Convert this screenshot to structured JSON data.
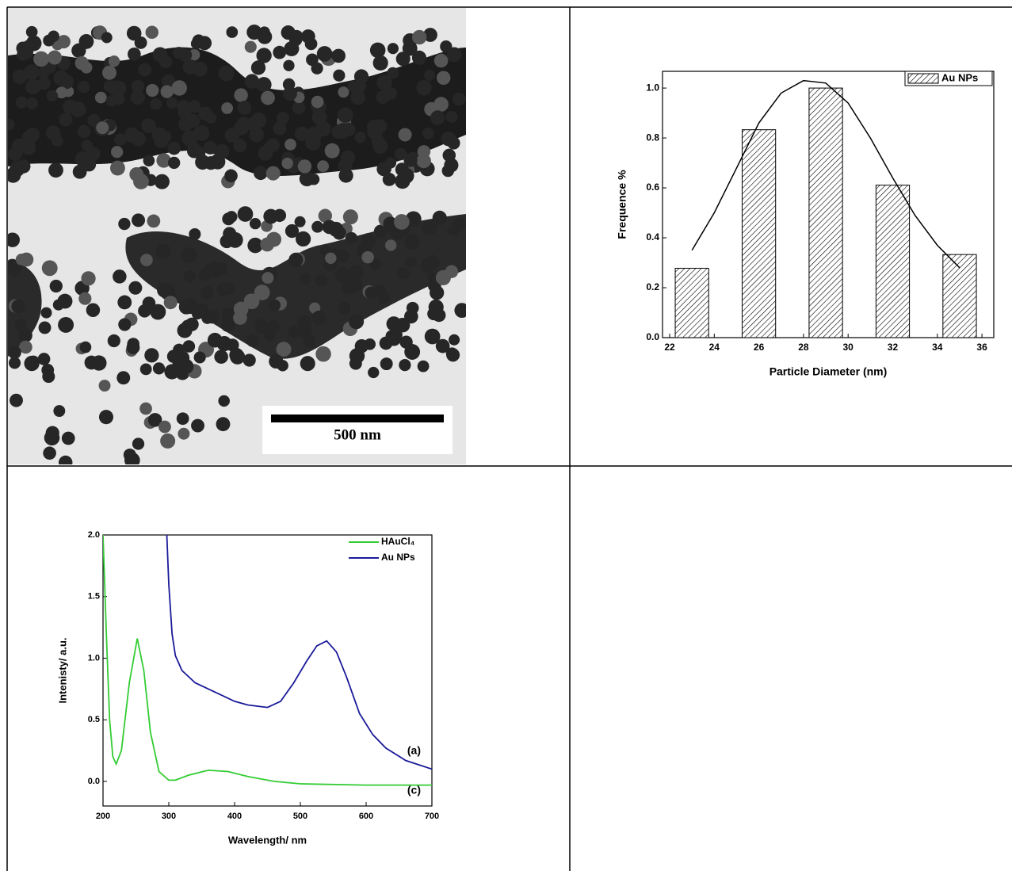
{
  "image": {
    "scale_bar_label": "500 nm"
  },
  "chart_data": [
    {
      "type": "bar",
      "x_label": "Particle Diameter (nm)",
      "y_label": "Frequence %",
      "x": [
        23,
        26,
        29,
        32,
        35
      ],
      "series": [
        {
          "name": "Au NPs",
          "color": "#000000",
          "values": [
            0.278,
            0.833,
            1.0,
            0.611,
            0.333
          ]
        }
      ],
      "fit": {
        "color": "#000000",
        "x": [
          23,
          24,
          25,
          26,
          27,
          28,
          29,
          30,
          31,
          32,
          33,
          34,
          35
        ],
        "values": [
          0.35,
          0.5,
          0.68,
          0.86,
          0.98,
          1.03,
          1.02,
          0.94,
          0.8,
          0.64,
          0.49,
          0.37,
          0.28
        ]
      },
      "xlim": [
        21.68,
        36.53
      ],
      "ylim": [
        0,
        1.067
      ],
      "xticks": [
        22,
        24,
        26,
        28,
        30,
        32,
        34,
        36
      ],
      "yticks": [
        {
          "value": 0,
          "label": "0.0"
        },
        {
          "value": 0.2,
          "label": "0.2"
        },
        {
          "value": 0.4,
          "label": "0.4"
        },
        {
          "value": 0.6,
          "label": "0.6"
        },
        {
          "value": 0.8,
          "label": "0.8"
        },
        {
          "value": 1.0,
          "label": "1.0"
        }
      ],
      "legend": "top-right"
    },
    {
      "type": "line",
      "x_label": "Wavelength/ nm",
      "y_label": "Intenisty/ a.u.",
      "series": [
        {
          "name": "HAuCl₄",
          "color": "#33cc33",
          "x": [
            200,
            205,
            210,
            215,
            220,
            228,
            240,
            252,
            262,
            272,
            285,
            300,
            310,
            330,
            360,
            390,
            420,
            460,
            500,
            600,
            700
          ],
          "values": [
            2.0,
            1.2,
            0.5,
            0.2,
            0.14,
            0.25,
            0.8,
            1.16,
            0.9,
            0.4,
            0.08,
            0.01,
            0.01,
            0.05,
            0.09,
            0.08,
            0.04,
            0.0,
            -0.02,
            -0.03,
            -0.03
          ]
        },
        {
          "name": "Au NPs",
          "color": "#1a1a99",
          "x": [
            297,
            300,
            305,
            310,
            320,
            340,
            360,
            380,
            400,
            420,
            450,
            470,
            490,
            510,
            525,
            540,
            555,
            570,
            590,
            610,
            630,
            660,
            700
          ],
          "values": [
            2.0,
            1.6,
            1.2,
            1.02,
            0.9,
            0.8,
            0.75,
            0.7,
            0.65,
            0.62,
            0.6,
            0.65,
            0.8,
            0.98,
            1.1,
            1.14,
            1.05,
            0.85,
            0.55,
            0.38,
            0.27,
            0.17,
            0.1
          ]
        }
      ],
      "annotations": [
        "(a)",
        "(c)"
      ],
      "xlim": [
        200,
        700
      ],
      "ylim": [
        -0.2,
        2.0
      ],
      "xticks": [
        200,
        300,
        400,
        500,
        600,
        700
      ],
      "yticks": [
        {
          "value": 0,
          "label": "0.0"
        },
        {
          "value": 0.5,
          "label": "0.5"
        },
        {
          "value": 1.0,
          "label": "1.0"
        },
        {
          "value": 1.5,
          "label": "1.5"
        },
        {
          "value": 2.0,
          "label": "2.0"
        }
      ],
      "legend": "top-right"
    }
  ]
}
